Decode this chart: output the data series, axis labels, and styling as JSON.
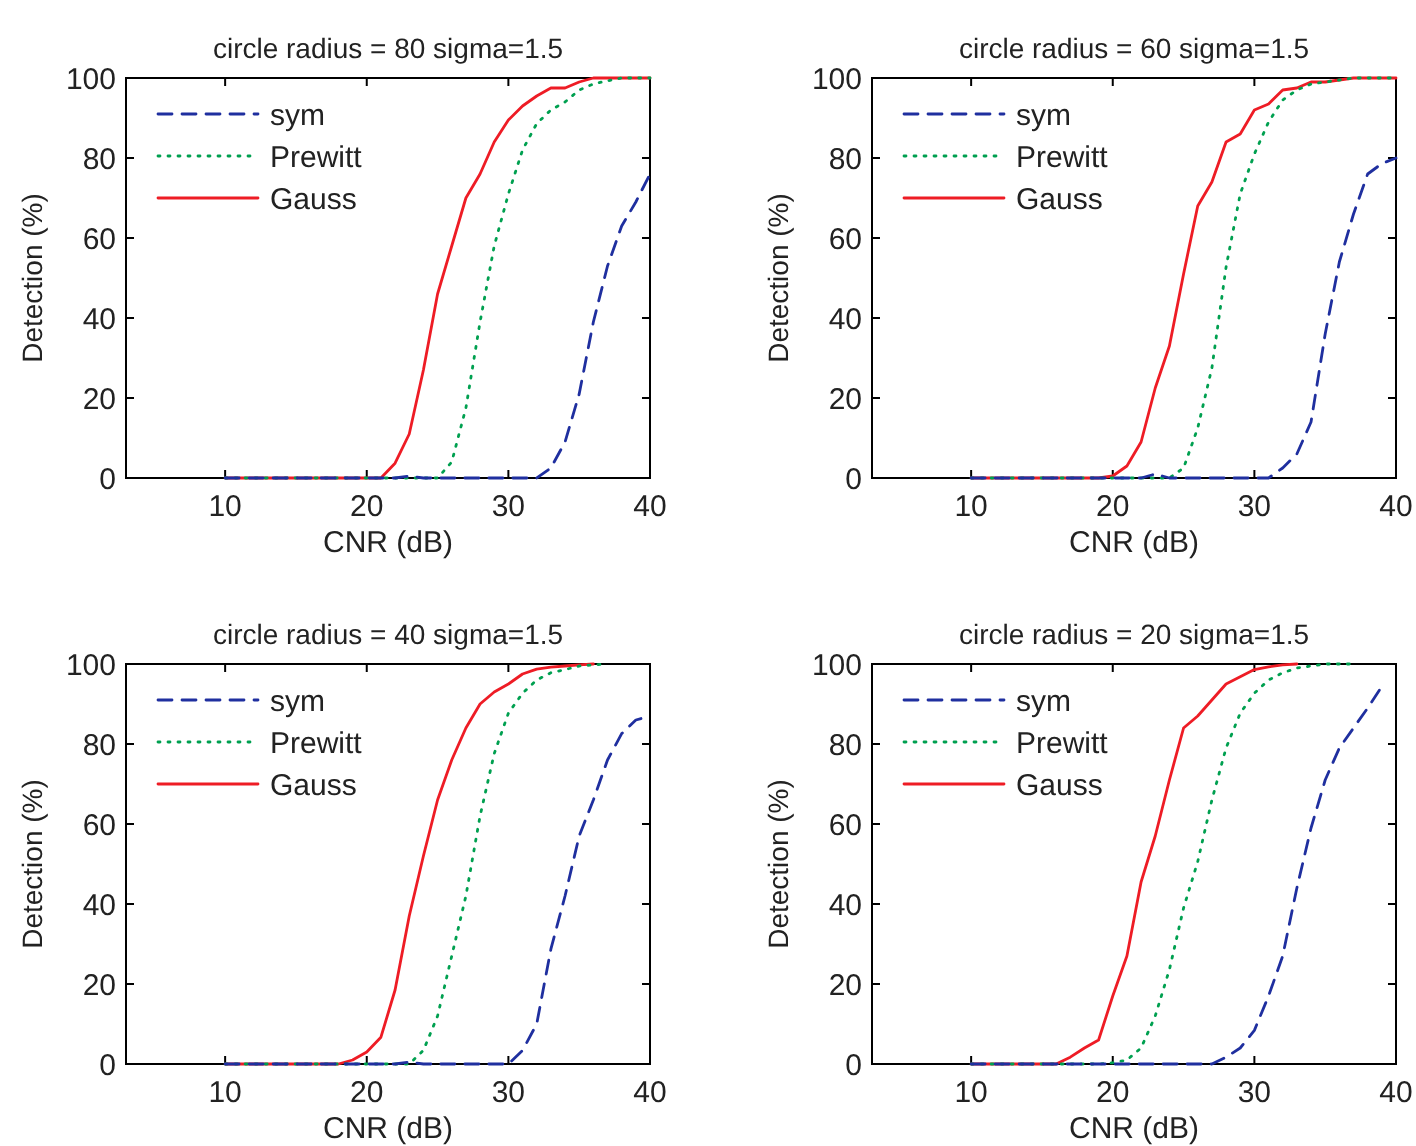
{
  "chart_data": [
    {
      "type": "line",
      "title": "circle radius = 80 sigma=1.5",
      "xlabel": "CNR (dB)",
      "ylabel": "Detection (%)",
      "xlim": [
        3,
        40
      ],
      "xticks": [
        10,
        20,
        30,
        40
      ],
      "ylim": [
        0,
        100
      ],
      "yticks": [
        0,
        20,
        40,
        60,
        80,
        100
      ],
      "legend": "top left",
      "grid": false,
      "x": [
        10,
        11,
        12,
        13,
        14,
        15,
        16,
        17,
        18,
        19,
        20,
        21,
        22,
        23,
        24,
        25,
        26,
        27,
        28,
        29,
        30,
        31,
        32,
        33,
        34,
        35,
        36,
        37,
        38,
        39,
        40
      ],
      "series": [
        {
          "name": "sym",
          "color": "#1f2f9f",
          "line_style": "dashed",
          "values": [
            0,
            0,
            0,
            0,
            0,
            0,
            0,
            0,
            0,
            0,
            0,
            0,
            0,
            0.5,
            0,
            0,
            0,
            0,
            0,
            0,
            0,
            0,
            0,
            2.5,
            9,
            21,
            39,
            53,
            63,
            69,
            76
          ]
        },
        {
          "name": "Prewitt",
          "color": "#00a050",
          "line_style": "dotted",
          "values": [
            0,
            0,
            0,
            0,
            0,
            0,
            0,
            0,
            0,
            0,
            0,
            0,
            0,
            0,
            0,
            0,
            4,
            17.5,
            39,
            58,
            71,
            82,
            88.6,
            92,
            94,
            97,
            98.5,
            99.3,
            100,
            100,
            100
          ]
        },
        {
          "name": "Gauss",
          "color": "#ee1c25",
          "line_style": "solid",
          "values": [
            0,
            0,
            0,
            0,
            0,
            0,
            0,
            0,
            0,
            0,
            0,
            0,
            3.7,
            11,
            27,
            46,
            58,
            70,
            76,
            84,
            89.5,
            93,
            95.5,
            97.5,
            97.5,
            99,
            100,
            100,
            100,
            100,
            100
          ]
        }
      ]
    },
    {
      "type": "line",
      "title": "circle radius = 60 sigma=1.5",
      "xlabel": "CNR (dB)",
      "ylabel": "Detection (%)",
      "xlim": [
        3,
        40
      ],
      "xticks": [
        10,
        20,
        30,
        40
      ],
      "ylim": [
        0,
        100
      ],
      "yticks": [
        0,
        20,
        40,
        60,
        80,
        100
      ],
      "legend": "top left",
      "grid": false,
      "x": [
        10,
        11,
        12,
        13,
        14,
        15,
        16,
        17,
        18,
        19,
        20,
        21,
        22,
        23,
        24,
        25,
        26,
        27,
        28,
        29,
        30,
        31,
        32,
        33,
        34,
        35,
        36,
        37,
        38,
        39,
        40
      ],
      "series": [
        {
          "name": "sym",
          "color": "#1f2f9f",
          "line_style": "dashed",
          "values": [
            0,
            0,
            0,
            0,
            0,
            0,
            0,
            0,
            0,
            0,
            0,
            0,
            0,
            1,
            0,
            0,
            0,
            0,
            0,
            0,
            0,
            0,
            2.5,
            6,
            14,
            36,
            54,
            66,
            76,
            78.6,
            80
          ]
        },
        {
          "name": "Prewitt",
          "color": "#00a050",
          "line_style": "dotted",
          "values": [
            0,
            0,
            0,
            0,
            0,
            0,
            0,
            0,
            0,
            0,
            0,
            0,
            0,
            0,
            0,
            2.5,
            12.5,
            27.5,
            52.7,
            71,
            81,
            89,
            94.5,
            97,
            98.5,
            99,
            99.5,
            100,
            100,
            100,
            100
          ]
        },
        {
          "name": "Gauss",
          "color": "#ee1c25",
          "line_style": "solid",
          "values": [
            0,
            0,
            0,
            0,
            0,
            0,
            0,
            0,
            0,
            0,
            0.5,
            3,
            9,
            22.5,
            33,
            51,
            68,
            74,
            84,
            86,
            92,
            93.5,
            97,
            97.5,
            99,
            99,
            99.5,
            100,
            100,
            100,
            100
          ]
        }
      ]
    },
    {
      "type": "line",
      "title": "circle radius = 40 sigma=1.5",
      "xlabel": "CNR (dB)",
      "ylabel": "Detection (%)",
      "xlim": [
        3,
        40
      ],
      "xticks": [
        10,
        20,
        30,
        40
      ],
      "ylim": [
        0,
        100
      ],
      "yticks": [
        0,
        20,
        40,
        60,
        80,
        100
      ],
      "legend": "top left",
      "grid": false,
      "x": [
        10,
        11,
        12,
        13,
        14,
        15,
        16,
        17,
        18,
        19,
        20,
        21,
        22,
        23,
        24,
        25,
        26,
        27,
        28,
        29,
        30,
        31,
        32,
        33,
        34,
        35,
        36,
        37,
        38,
        39,
        40
      ],
      "series": [
        {
          "name": "sym",
          "color": "#1f2f9f",
          "line_style": "dashed",
          "values": [
            0,
            0,
            0,
            0,
            0,
            0,
            0,
            0,
            0,
            0,
            0,
            0,
            0,
            0.5,
            0,
            0,
            0,
            0,
            0,
            0,
            0,
            3.4,
            10,
            28.7,
            42,
            57,
            66,
            76,
            82.6,
            86,
            87
          ]
        },
        {
          "name": "Prewitt",
          "color": "#00a050",
          "line_style": "dotted",
          "values": [
            0,
            0,
            0,
            0,
            0,
            0,
            0,
            0,
            0,
            0,
            0,
            0,
            0,
            0,
            3.4,
            12,
            27,
            42,
            62,
            77.6,
            87.7,
            92.7,
            96,
            97.8,
            98.6,
            99.5,
            99.8,
            100,
            null,
            null,
            null
          ]
        },
        {
          "name": "Gauss",
          "color": "#ee1c25",
          "line_style": "solid",
          "values": [
            0,
            0,
            0,
            0,
            0,
            0,
            0,
            0,
            0,
            1,
            3,
            6.7,
            18.5,
            37,
            52,
            66,
            76,
            84,
            90,
            93,
            95,
            97.5,
            98.7,
            99.2,
            99.5,
            99.8,
            100,
            null,
            null,
            null,
            null
          ]
        }
      ]
    },
    {
      "type": "line",
      "title": "circle radius = 20 sigma=1.5",
      "xlabel": "CNR (dB)",
      "ylabel": "Detection (%)",
      "xlim": [
        3,
        40
      ],
      "xticks": [
        10,
        20,
        30,
        40
      ],
      "ylim": [
        0,
        100
      ],
      "yticks": [
        0,
        20,
        40,
        60,
        80,
        100
      ],
      "legend": "top left",
      "grid": false,
      "x": [
        10,
        11,
        12,
        13,
        14,
        15,
        16,
        17,
        18,
        19,
        20,
        21,
        22,
        23,
        24,
        25,
        26,
        27,
        28,
        29,
        30,
        31,
        32,
        33,
        34,
        35,
        36,
        37,
        38,
        39
      ],
      "series": [
        {
          "name": "sym",
          "color": "#1f2f9f",
          "line_style": "dashed",
          "values": [
            0,
            0,
            0,
            0,
            0,
            0,
            0,
            0,
            0,
            0,
            0,
            0,
            0,
            0,
            0,
            0,
            0,
            0,
            1.7,
            4,
            8.4,
            17,
            27,
            44,
            59,
            71,
            79,
            84,
            89,
            94.4
          ]
        },
        {
          "name": "Prewitt",
          "color": "#00a050",
          "line_style": "dotted",
          "values": [
            0,
            0,
            0,
            0,
            0,
            0,
            0,
            0,
            0,
            0,
            0.3,
            1,
            4,
            12,
            23.6,
            39,
            50.6,
            66,
            79,
            87.7,
            92.7,
            96,
            97.8,
            99,
            99.5,
            100,
            100,
            100,
            null,
            null
          ]
        },
        {
          "name": "Gauss",
          "color": "#ee1c25",
          "line_style": "solid",
          "values": [
            0,
            0,
            0,
            0,
            0,
            0,
            0,
            1.7,
            4,
            6,
            17,
            27,
            45.5,
            57,
            71,
            84,
            87,
            91,
            95,
            96.8,
            98.6,
            99.3,
            99.8,
            100,
            null,
            null,
            null,
            null,
            null,
            null
          ]
        }
      ]
    }
  ]
}
